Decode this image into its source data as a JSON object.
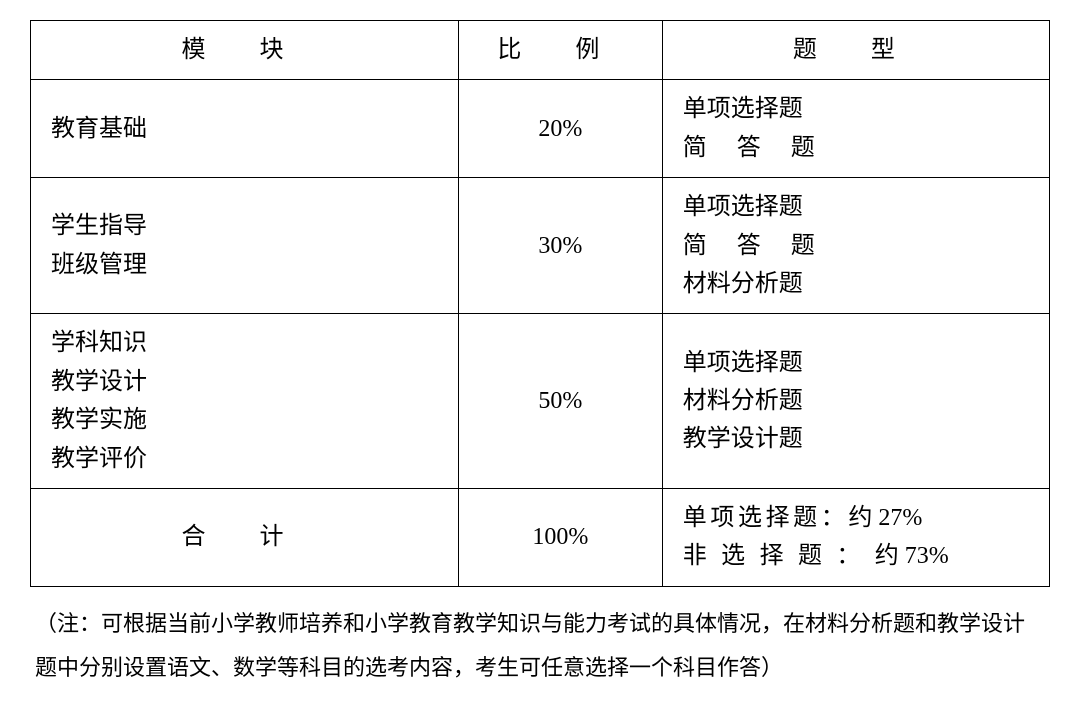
{
  "table": {
    "headers": {
      "module": "模 块",
      "ratio": "比 例",
      "type": "题 型"
    },
    "rows": [
      {
        "module": "教育基础",
        "ratio": "20%",
        "types": [
          "单项选择题",
          "简 答 题"
        ]
      },
      {
        "module": "学生指导\n班级管理",
        "ratio": "30%",
        "types": [
          "单项选择题",
          "简 答 题",
          "材料分析题"
        ]
      },
      {
        "module": "学科知识\n教学设计\n教学实施\n教学评价",
        "ratio": "50%",
        "types": [
          "单项选择题",
          "材料分析题",
          "教学设计题"
        ]
      }
    ],
    "total": {
      "label": "合 计",
      "ratio": "100%",
      "summary": [
        {
          "label": "单项选择题：",
          "value": "约 27%"
        },
        {
          "label": "非选择题：",
          "value": "约 73%"
        }
      ]
    }
  },
  "note": "（注：可根据当前小学教师培养和小学教育教学知识与能力考试的具体情况，在材料分析题和教学设计题中分别设置语文、数学等科目的选考内容，考生可任意选择一个科目作答）",
  "styling": {
    "border_color": "#000000",
    "text_color": "#000000",
    "background_color": "#ffffff",
    "font_family": "SimSun",
    "cell_fontsize": 24,
    "note_fontsize": 22,
    "border_width": 1.5
  }
}
